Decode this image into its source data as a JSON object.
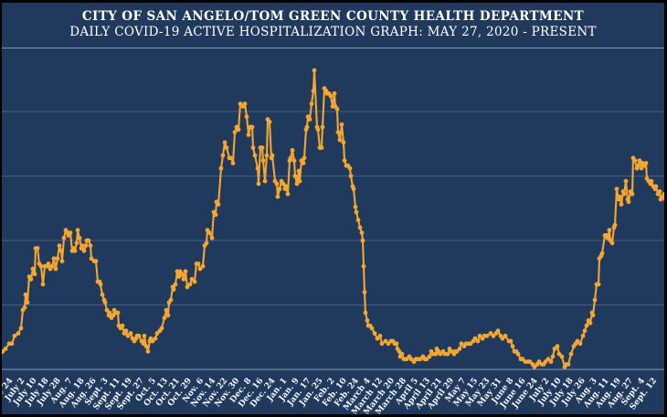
{
  "header": {
    "title": "CITY OF SAN ANGELO/TOM GREEN COUNTY HEALTH DEPARTMENT",
    "subtitle": "DAILY COVID-19 ACTIVE HOSPITALIZATION GRAPH: MAY 27, 2020 - PRESENT"
  },
  "colors": {
    "background": "#1F3A5C",
    "frame_border": "#000000",
    "line": "#F5A631",
    "gridline": "#7E99B5",
    "axis_line": "#AEC2D6",
    "text": "#FFFFFF"
  },
  "chart_data": {
    "type": "line",
    "title": "CITY OF SAN ANGELO/TOM GREEN COUNTY HEALTH DEPARTMENT",
    "subtitle": "DAILY COVID-19 ACTIVE HOSPITALIZATION GRAPH: MAY 27, 2020 - PRESENT",
    "series_name": "Daily active COVID-19 hospitalizations",
    "marker": "circle",
    "legend": "none",
    "grid": "horizontal-only",
    "y_axis": {
      "labels_visible": false,
      "min": 0,
      "max_displayed": 125,
      "gridlines": [
        25,
        50,
        75,
        100
      ]
    },
    "x_axis": {
      "unit": "date",
      "range": "May 27, 2020 - present (Sept. 2021)",
      "label_interval": "every 8 reporting days",
      "tick_labels": [
        "June 16",
        "June 24",
        "July 2",
        "July 10",
        "July 18",
        "July 28",
        "Aug. 7",
        "Aug. 18",
        "Aug. 26",
        "Sept. 3",
        "Sept. 11",
        "Sept. 19",
        "Sept. 27",
        "Oct. 5",
        "Oct. 13",
        "Oct. 21",
        "Oct. 29",
        "Nov. 6",
        "Nov. 14",
        "Nov. 22",
        "Nov. 30",
        "Dec. 8",
        "Dec. 16",
        "Dec. 24",
        "Jan. 1",
        "Jan. 9",
        "Jan. 17",
        "Jan. 25",
        "Feb. 2",
        "Feb. 10",
        "Feb. 24",
        "March 4",
        "March 12",
        "March 20",
        "March 28",
        "April 5",
        "April 13",
        "April 21",
        "April 29",
        "May 7",
        "May 15",
        "May 23",
        "May 31",
        "June 8",
        "June 16",
        "June 24",
        "July 2",
        "July 10",
        "July 18",
        "July 26",
        "Aug. 3",
        "Aug. 11",
        "Aug. 19",
        "Aug. 27",
        "Sept. 4",
        "Sept. 12"
      ]
    },
    "points_note": "each point = [x offset along date axis, active hospitalization count]",
    "points": [
      [
        0,
        5
      ],
      [
        3,
        7
      ],
      [
        6,
        8
      ],
      [
        10,
        10
      ],
      [
        13,
        10
      ],
      [
        16,
        13
      ],
      [
        20,
        14
      ],
      [
        23,
        16
      ],
      [
        25,
        23
      ],
      [
        27,
        24
      ],
      [
        28,
        29
      ],
      [
        30,
        26
      ],
      [
        32,
        36
      ],
      [
        34,
        35
      ],
      [
        36,
        39
      ],
      [
        38,
        37
      ],
      [
        39,
        47
      ],
      [
        41,
        47
      ],
      [
        43,
        41
      ],
      [
        45,
        40
      ],
      [
        47,
        33
      ],
      [
        49,
        40
      ],
      [
        51,
        40
      ],
      [
        53,
        41
      ],
      [
        55,
        39
      ],
      [
        57,
        40
      ],
      [
        59,
        43
      ],
      [
        61,
        39
      ],
      [
        63,
        43
      ],
      [
        65,
        48
      ],
      [
        67,
        46
      ],
      [
        68,
        42
      ],
      [
        70,
        51
      ],
      [
        72,
        54
      ],
      [
        74,
        53
      ],
      [
        75,
        52
      ],
      [
        77,
        53
      ],
      [
        79,
        46
      ],
      [
        81,
        47
      ],
      [
        82,
        46
      ],
      [
        84,
        49
      ],
      [
        85,
        54
      ],
      [
        87,
        51
      ],
      [
        89,
        47
      ],
      [
        90,
        48
      ],
      [
        92,
        46
      ],
      [
        94,
        48
      ],
      [
        95,
        50
      ],
      [
        97,
        50
      ],
      [
        99,
        48
      ],
      [
        100,
        43
      ],
      [
        103,
        42
      ],
      [
        105,
        42
      ],
      [
        107,
        34
      ],
      [
        109,
        34
      ],
      [
        110,
        33
      ],
      [
        112,
        29
      ],
      [
        114,
        27
      ],
      [
        115,
        26
      ],
      [
        117,
        23
      ],
      [
        119,
        21
      ],
      [
        120,
        22
      ],
      [
        122,
        20
      ],
      [
        124,
        21
      ],
      [
        125,
        23
      ],
      [
        127,
        22
      ],
      [
        129,
        22
      ],
      [
        130,
        17
      ],
      [
        132,
        16
      ],
      [
        134,
        17
      ],
      [
        136,
        14
      ],
      [
        138,
        15
      ],
      [
        140,
        13
      ],
      [
        143,
        14
      ],
      [
        145,
        12
      ],
      [
        147,
        11
      ],
      [
        149,
        12
      ],
      [
        150,
        13
      ],
      [
        152,
        13
      ],
      [
        155,
        11
      ],
      [
        157,
        10
      ],
      [
        158,
        13
      ],
      [
        160,
        9
      ],
      [
        162,
        7
      ],
      [
        164,
        11
      ],
      [
        165,
        12
      ],
      [
        167,
        11
      ],
      [
        170,
        12
      ],
      [
        172,
        14
      ],
      [
        175,
        15
      ],
      [
        177,
        16
      ],
      [
        180,
        20
      ],
      [
        182,
        23
      ],
      [
        184,
        21
      ],
      [
        185,
        26
      ],
      [
        187,
        27
      ],
      [
        189,
        32
      ],
      [
        190,
        31
      ],
      [
        192,
        33
      ],
      [
        194,
        38
      ],
      [
        196,
        36
      ],
      [
        197,
        38
      ],
      [
        199,
        37
      ],
      [
        201,
        35
      ],
      [
        203,
        38
      ],
      [
        205,
        32
      ],
      [
        208,
        33
      ],
      [
        210,
        35
      ],
      [
        213,
        34
      ],
      [
        215,
        41
      ],
      [
        217,
        41
      ],
      [
        219,
        39
      ],
      [
        222,
        40
      ],
      [
        224,
        48
      ],
      [
        226,
        49
      ],
      [
        227,
        54
      ],
      [
        229,
        53
      ],
      [
        232,
        51
      ],
      [
        234,
        61
      ],
      [
        236,
        60
      ],
      [
        237,
        65
      ],
      [
        239,
        64
      ],
      [
        242,
        78
      ],
      [
        244,
        83
      ],
      [
        246,
        88
      ],
      [
        248,
        86
      ],
      [
        251,
        82
      ],
      [
        253,
        82
      ],
      [
        255,
        80
      ],
      [
        257,
        92
      ],
      [
        259,
        94
      ],
      [
        261,
        93
      ],
      [
        263,
        103
      ],
      [
        266,
        102
      ],
      [
        268,
        103
      ],
      [
        270,
        98
      ],
      [
        272,
        91
      ],
      [
        274,
        94
      ],
      [
        276,
        94
      ],
      [
        277,
        86
      ],
      [
        279,
        83
      ],
      [
        282,
        78
      ],
      [
        283,
        72
      ],
      [
        285,
        86
      ],
      [
        287,
        86
      ],
      [
        288,
        81
      ],
      [
        290,
        73
      ],
      [
        292,
        83
      ],
      [
        293,
        97
      ],
      [
        295,
        96
      ],
      [
        297,
        82
      ],
      [
        298,
        83
      ],
      [
        301,
        73
      ],
      [
        303,
        72
      ],
      [
        304,
        67
      ],
      [
        306,
        70
      ],
      [
        308,
        73
      ],
      [
        310,
        72
      ],
      [
        312,
        70
      ],
      [
        313,
        71
      ],
      [
        315,
        68
      ],
      [
        317,
        81
      ],
      [
        318,
        82
      ],
      [
        320,
        85
      ],
      [
        322,
        81
      ],
      [
        323,
        75
      ],
      [
        325,
        72
      ],
      [
        327,
        77
      ],
      [
        328,
        73
      ],
      [
        330,
        81
      ],
      [
        332,
        80
      ],
      [
        333,
        82
      ],
      [
        335,
        93
      ],
      [
        336,
        94
      ],
      [
        337,
        98
      ],
      [
        339,
        97
      ],
      [
        341,
        103
      ],
      [
        343,
        108
      ],
      [
        344,
        116
      ],
      [
        347,
        94
      ],
      [
        348,
        93
      ],
      [
        350,
        86
      ],
      [
        352,
        86
      ],
      [
        353,
        94
      ],
      [
        355,
        109
      ],
      [
        357,
        108
      ],
      [
        358,
        107
      ],
      [
        360,
        107
      ],
      [
        362,
        106
      ],
      [
        364,
        102
      ],
      [
        366,
        107
      ],
      [
        367,
        102
      ],
      [
        369,
        101
      ],
      [
        370,
        92
      ],
      [
        372,
        89
      ],
      [
        374,
        95
      ],
      [
        376,
        88
      ],
      [
        377,
        81
      ],
      [
        379,
        79
      ],
      [
        381,
        79
      ],
      [
        383,
        78
      ],
      [
        384,
        75
      ],
      [
        386,
        71
      ],
      [
        387,
        70
      ],
      [
        389,
        63
      ],
      [
        390,
        61
      ],
      [
        392,
        58
      ],
      [
        394,
        55
      ],
      [
        396,
        53
      ],
      [
        397,
        50
      ],
      [
        398,
        40
      ],
      [
        399,
        30
      ],
      [
        400,
        22
      ],
      [
        402,
        19
      ],
      [
        403,
        17
      ],
      [
        405,
        17
      ],
      [
        407,
        16
      ],
      [
        410,
        14
      ],
      [
        413,
        12
      ],
      [
        416,
        13
      ],
      [
        418,
        10
      ],
      [
        422,
        11
      ],
      [
        425,
        10
      ],
      [
        428,
        11
      ],
      [
        430,
        11
      ],
      [
        432,
        10
      ],
      [
        434,
        10
      ],
      [
        435,
        8
      ],
      [
        437,
        7
      ],
      [
        438,
        5
      ],
      [
        440,
        6
      ],
      [
        442,
        4
      ],
      [
        445,
        4
      ],
      [
        448,
        5
      ],
      [
        450,
        4
      ],
      [
        453,
        3
      ],
      [
        455,
        4
      ],
      [
        457,
        4
      ],
      [
        460,
        4
      ],
      [
        463,
        5
      ],
      [
        465,
        4
      ],
      [
        467,
        4
      ],
      [
        470,
        5
      ],
      [
        472,
        7
      ],
      [
        474,
        6
      ],
      [
        477,
        6
      ],
      [
        478,
        8
      ],
      [
        480,
        7
      ],
      [
        482,
        6
      ],
      [
        485,
        7
      ],
      [
        487,
        6
      ],
      [
        490,
        6
      ],
      [
        492,
        8
      ],
      [
        494,
        7
      ],
      [
        497,
        6
      ],
      [
        498,
        7
      ],
      [
        500,
        7
      ],
      [
        503,
        8
      ],
      [
        505,
        10
      ],
      [
        508,
        9
      ],
      [
        510,
        10
      ],
      [
        513,
        10
      ],
      [
        515,
        10
      ],
      [
        518,
        11
      ],
      [
        520,
        12
      ],
      [
        523,
        11
      ],
      [
        525,
        13
      ],
      [
        528,
        12
      ],
      [
        530,
        13
      ],
      [
        533,
        13
      ],
      [
        537,
        14
      ],
      [
        540,
        13
      ],
      [
        543,
        14
      ],
      [
        545,
        15
      ],
      [
        548,
        13
      ],
      [
        550,
        12
      ],
      [
        553,
        13
      ],
      [
        557,
        11
      ],
      [
        559,
        11
      ],
      [
        561,
        9
      ],
      [
        563,
        7
      ],
      [
        565,
        7
      ],
      [
        567,
        6
      ],
      [
        570,
        4
      ],
      [
        572,
        4
      ],
      [
        575,
        3
      ],
      [
        578,
        3
      ],
      [
        580,
        3
      ],
      [
        583,
        2
      ],
      [
        585,
        1
      ],
      [
        588,
        2
      ],
      [
        590,
        3
      ],
      [
        593,
        2
      ],
      [
        595,
        2
      ],
      [
        597,
        3
      ],
      [
        600,
        4
      ],
      [
        603,
        3
      ],
      [
        605,
        5
      ],
      [
        607,
        8
      ],
      [
        610,
        9
      ],
      [
        612,
        6
      ],
      [
        615,
        5
      ],
      [
        618,
        1
      ],
      [
        620,
        2
      ],
      [
        622,
        2
      ],
      [
        625,
        6
      ],
      [
        628,
        9
      ],
      [
        630,
        10
      ],
      [
        632,
        11
      ],
      [
        635,
        10
      ],
      [
        638,
        13
      ],
      [
        640,
        15
      ],
      [
        642,
        17
      ],
      [
        644,
        19
      ],
      [
        646,
        18
      ],
      [
        648,
        22
      ],
      [
        649,
        21
      ],
      [
        651,
        27
      ],
      [
        653,
        33
      ],
      [
        655,
        33
      ],
      [
        656,
        43
      ],
      [
        658,
        44
      ],
      [
        659,
        45
      ],
      [
        662,
        52
      ],
      [
        664,
        52
      ],
      [
        665,
        51
      ],
      [
        667,
        54
      ],
      [
        668,
        50
      ],
      [
        670,
        49
      ],
      [
        672,
        55
      ],
      [
        673,
        56
      ],
      [
        675,
        70
      ],
      [
        677,
        66
      ],
      [
        678,
        67
      ],
      [
        680,
        64
      ],
      [
        682,
        69
      ],
      [
        683,
        68
      ],
      [
        685,
        73
      ],
      [
        687,
        66
      ],
      [
        688,
        65
      ],
      [
        690,
        69
      ],
      [
        692,
        68
      ],
      [
        693,
        82
      ],
      [
        695,
        81
      ],
      [
        697,
        78
      ],
      [
        698,
        79
      ],
      [
        700,
        81
      ],
      [
        702,
        78
      ],
      [
        703,
        80
      ],
      [
        705,
        79
      ],
      [
        707,
        80
      ],
      [
        708,
        74
      ],
      [
        710,
        73
      ],
      [
        712,
        72
      ],
      [
        713,
        73
      ],
      [
        715,
        71
      ],
      [
        717,
        70
      ],
      [
        718,
        71
      ],
      [
        720,
        68
      ],
      [
        722,
        69
      ],
      [
        723,
        66
      ],
      [
        725,
        67
      ],
      [
        727,
        68
      ],
      [
        728,
        66
      ]
    ]
  }
}
